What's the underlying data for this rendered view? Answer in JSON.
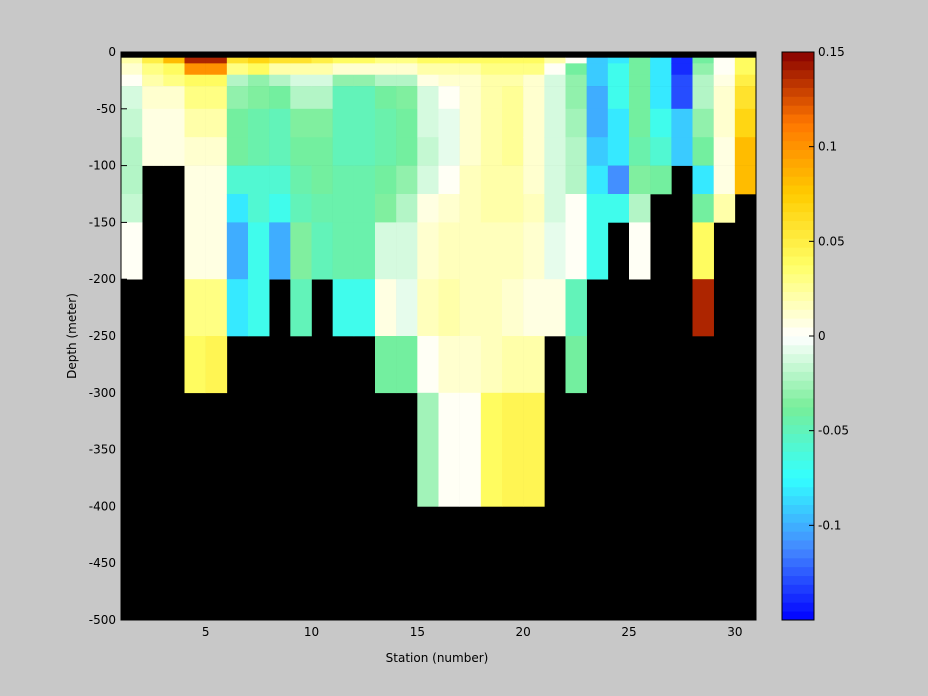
{
  "chart_data": {
    "type": "heatmap",
    "xlabel": "Station (number)",
    "ylabel": "Depth (meter)",
    "xlim": [
      1,
      31
    ],
    "ylim": [
      -500,
      0
    ],
    "xticks": [
      5,
      10,
      15,
      20,
      25,
      30
    ],
    "yticks": [
      0,
      -50,
      -100,
      -150,
      -200,
      -250,
      -300,
      -350,
      -400,
      -450,
      -500
    ],
    "clim": [
      -0.15,
      0.15
    ],
    "cticks": [
      -0.1,
      -0.05,
      0,
      0.05,
      0.1,
      0.15
    ],
    "colormap": [
      "#0000ff",
      "#4488ff",
      "#33ffff",
      "#77ee99",
      "#ffffff",
      "#ffff66",
      "#ffcc00",
      "#ff7700",
      "#880000"
    ],
    "background": "#000000",
    "x": [
      1,
      2,
      3,
      4,
      5,
      6,
      7,
      8,
      9,
      10,
      11,
      12,
      13,
      14,
      15,
      16,
      17,
      18,
      19,
      20,
      21,
      22,
      23,
      24,
      25,
      26,
      27,
      28,
      29,
      30
    ],
    "depth_edges": [
      -5,
      -10,
      -20,
      -30,
      -50,
      -75,
      -100,
      -125,
      -150,
      -200,
      -250,
      -300,
      -400
    ],
    "z": [
      [
        0.02,
        0.01,
        0.0,
        -0.01,
        -0.015,
        -0.02,
        -0.02,
        -0.015,
        0.0
      ],
      [
        0.05,
        0.03,
        0.02,
        0.01,
        0.005,
        0.005
      ],
      [
        0.08,
        0.04,
        0.03,
        0.01,
        0.005,
        0.005
      ],
      [
        0.14,
        0.1,
        0.04,
        0.03,
        0.02,
        0.01,
        0.005,
        0.005,
        0.005,
        0.03,
        0.04
      ],
      [
        0.14,
        0.1,
        0.04,
        0.03,
        0.02,
        0.01,
        0.005,
        0.005,
        0.005,
        0.03,
        0.045
      ],
      [
        0.06,
        0.03,
        -0.02,
        -0.03,
        -0.04,
        -0.04,
        -0.06,
        -0.08,
        -0.1,
        -0.08
      ],
      [
        0.07,
        0.04,
        -0.03,
        -0.035,
        -0.045,
        -0.045,
        -0.06,
        -0.06,
        -0.07,
        -0.07
      ],
      [
        0.06,
        0.02,
        -0.02,
        -0.04,
        -0.05,
        -0.05,
        -0.06,
        -0.07,
        -0.1
      ],
      [
        0.06,
        0.02,
        -0.01,
        -0.02,
        -0.035,
        -0.04,
        -0.045,
        -0.05,
        -0.035,
        -0.05
      ],
      [
        0.05,
        0.02,
        -0.01,
        -0.02,
        -0.035,
        -0.04,
        -0.04,
        -0.045,
        -0.05
      ],
      [
        0.04,
        0.01,
        -0.03,
        -0.05,
        -0.05,
        -0.05,
        -0.045,
        -0.045,
        -0.045,
        -0.07
      ],
      [
        0.04,
        0.01,
        -0.03,
        -0.05,
        -0.05,
        -0.05,
        -0.045,
        -0.045,
        -0.045,
        -0.07
      ],
      [
        0.03,
        0.01,
        -0.02,
        -0.04,
        -0.045,
        -0.045,
        -0.04,
        -0.035,
        -0.01,
        0.005,
        -0.04
      ],
      [
        0.03,
        0.01,
        -0.02,
        -0.035,
        -0.04,
        -0.04,
        -0.03,
        -0.02,
        -0.01,
        -0.005,
        -0.04
      ],
      [
        0.04,
        0.02,
        0.005,
        -0.01,
        -0.01,
        -0.015,
        -0.01,
        0.005,
        0.01,
        0.015,
        0.0,
        -0.025
      ],
      [
        0.04,
        0.02,
        0.01,
        0.0,
        -0.005,
        -0.005,
        0.0,
        0.01,
        0.015,
        0.02,
        0.01,
        0.0
      ],
      [
        0.04,
        0.02,
        0.01,
        0.01,
        0.01,
        0.01,
        0.015,
        0.015,
        0.015,
        0.015,
        0.01,
        0.0
      ],
      [
        0.04,
        0.03,
        0.02,
        0.02,
        0.02,
        0.02,
        0.02,
        0.02,
        0.015,
        0.015,
        0.015,
        0.04
      ],
      [
        0.04,
        0.03,
        0.02,
        0.025,
        0.025,
        0.025,
        0.02,
        0.02,
        0.015,
        0.01,
        0.02,
        0.045
      ],
      [
        0.04,
        0.03,
        0.01,
        0.01,
        0.01,
        0.01,
        0.01,
        0.015,
        0.01,
        0.005,
        0.02,
        0.045
      ],
      [
        0.02,
        0.0,
        -0.01,
        -0.01,
        -0.01,
        -0.01,
        -0.01,
        -0.01,
        -0.005,
        0.005
      ],
      [
        0.0,
        -0.04,
        -0.03,
        -0.03,
        -0.025,
        -0.02,
        -0.02,
        0.0,
        0.0,
        -0.05,
        -0.04
      ],
      [
        -0.09,
        -0.09,
        -0.09,
        -0.1,
        -0.1,
        -0.09,
        -0.08,
        -0.07,
        -0.07
      ],
      [
        -0.08,
        -0.07,
        -0.07,
        -0.07,
        -0.08,
        -0.08,
        -0.11,
        -0.07
      ],
      [
        -0.04,
        -0.04,
        -0.04,
        -0.04,
        -0.04,
        -0.045,
        -0.035,
        -0.02,
        0.0
      ],
      [
        -0.08,
        -0.08,
        -0.08,
        -0.08,
        -0.07,
        -0.06,
        -0.04
      ],
      [
        -0.14,
        -0.14,
        -0.13,
        -0.13,
        -0.09,
        -0.09
      ],
      [
        -0.04,
        -0.03,
        -0.02,
        -0.02,
        -0.03,
        -0.04,
        -0.08,
        -0.04,
        0.04,
        0.14
      ],
      [
        0.0,
        0.0,
        0.005,
        0.01,
        0.01,
        0.005,
        0.005,
        0.02
      ],
      [
        0.04,
        0.04,
        0.05,
        0.06,
        0.07,
        0.08,
        0.08
      ]
    ]
  }
}
